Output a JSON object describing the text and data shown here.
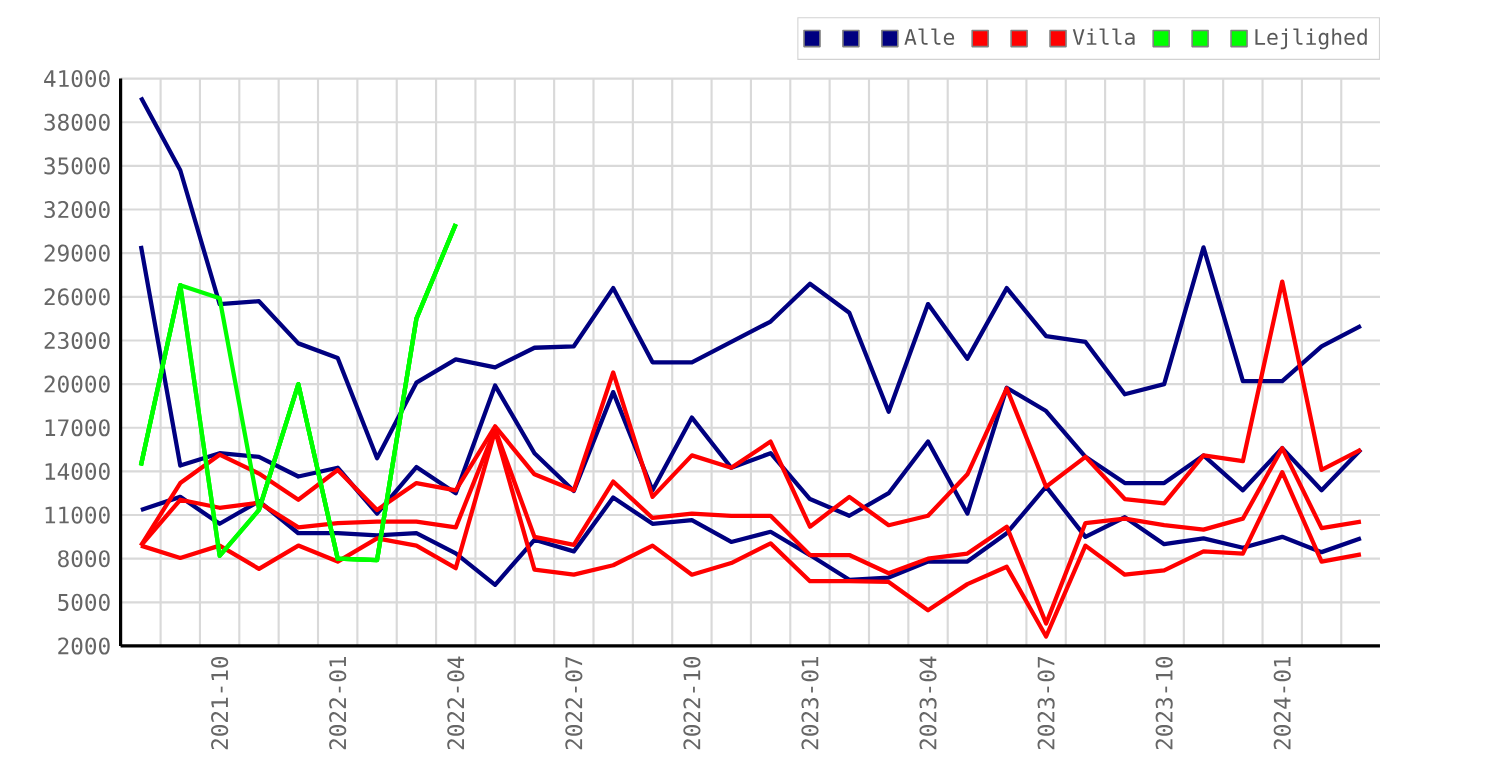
{
  "chart_data": {
    "type": "line",
    "x": [
      "2021-08",
      "2021-09",
      "2021-10",
      "2021-11",
      "2021-12",
      "2022-01",
      "2022-02",
      "2022-03",
      "2022-04",
      "2022-05",
      "2022-06",
      "2022-07",
      "2022-08",
      "2022-09",
      "2022-10",
      "2022-11",
      "2022-12",
      "2023-01",
      "2023-02",
      "2023-03",
      "2023-04",
      "2023-05",
      "2023-06",
      "2023-07",
      "2023-08",
      "2023-09",
      "2023-10",
      "2023-11",
      "2023-12",
      "2024-01",
      "2024-02",
      "2024-03"
    ],
    "series": [
      {
        "color": "#000080",
        "values": [
          39700,
          34700,
          25500,
          25700,
          22800,
          21800,
          14900,
          20100,
          21700,
          21150,
          22500,
          22600,
          26600,
          21500,
          21500,
          22900,
          24300,
          26900,
          24900,
          18100,
          25500,
          21750,
          26600,
          23300,
          22900,
          19300,
          20000,
          29400,
          20200,
          20200,
          22600,
          24000
        ]
      },
      {
        "color": "#000080",
        "values": [
          29500,
          14400,
          15250,
          15000,
          13650,
          14250,
          11100,
          14300,
          12500,
          19900,
          15250,
          12650,
          19450,
          12700,
          17700,
          14250,
          15250,
          12100,
          10950,
          12500,
          16050,
          11100,
          19750,
          18150,
          15000,
          13200,
          13200,
          15100,
          12700,
          15600,
          12700,
          15500
        ]
      },
      {
        "name": "Alle",
        "color": "#000080",
        "values": [
          11350,
          12250,
          10400,
          11950,
          9750,
          9750,
          9600,
          9750,
          8370,
          6200,
          9300,
          8500,
          12200,
          10400,
          10650,
          9150,
          9850,
          8250,
          6550,
          6700,
          7800,
          7800,
          9750,
          12950,
          9500,
          10850,
          9000,
          9400,
          8750,
          9500,
          8450,
          9400
        ]
      },
      {
        "color": "#ff0000",
        "values": [
          8900,
          13200,
          15150,
          13850,
          12050,
          14100,
          11350,
          13200,
          12700,
          17100,
          13800,
          12700,
          20800,
          12250,
          15100,
          14250,
          16050,
          10200,
          12250,
          10300,
          10950,
          13800,
          19700,
          12950,
          15000,
          12100,
          11800,
          15100,
          14700,
          27050,
          14100,
          15500
        ]
      },
      {
        "color": "#ff0000",
        "values": [
          8900,
          12050,
          11500,
          11850,
          10150,
          10450,
          10550,
          10550,
          10150,
          16900,
          9500,
          8950,
          13300,
          10800,
          11100,
          10950,
          10950,
          8250,
          8250,
          7000,
          8000,
          8350,
          10200,
          3550,
          10450,
          10750,
          10300,
          10000,
          10750,
          15600,
          10100,
          10550
        ]
      },
      {
        "name": "Villa",
        "color": "#ff0000",
        "values": [
          8900,
          8050,
          8900,
          7300,
          8900,
          7800,
          9400,
          8900,
          7350,
          16800,
          7250,
          6900,
          7550,
          8900,
          6900,
          7700,
          9050,
          6450,
          6450,
          6400,
          4450,
          6250,
          7450,
          2650,
          8900,
          6900,
          7200,
          8500,
          8350,
          13950,
          7800,
          8300
        ]
      },
      {
        "color": "#00ff00",
        "values": [
          14400,
          26800,
          25900,
          11350,
          20000,
          8000,
          7900,
          24500,
          31000,
          null,
          null,
          null,
          null,
          null,
          null,
          null,
          null,
          null,
          null,
          null,
          null,
          null,
          null,
          null,
          null,
          null,
          null,
          null,
          null,
          null,
          null,
          null
        ]
      },
      {
        "color": "#00ff00",
        "values": [
          14400,
          26800,
          8200,
          11350,
          20000,
          8000,
          7900,
          24500,
          31000,
          null,
          null,
          null,
          null,
          null,
          null,
          null,
          null,
          null,
          null,
          null,
          null,
          null,
          null,
          null,
          null,
          null,
          null,
          null,
          null,
          null,
          null,
          null
        ]
      },
      {
        "name": "Lejlighed",
        "color": "#00ff00",
        "values": [
          14400,
          26800,
          8200,
          11350,
          20000,
          8000,
          7900,
          24500,
          31000,
          null,
          null,
          null,
          null,
          null,
          null,
          null,
          null,
          null,
          null,
          null,
          null,
          null,
          null,
          null,
          null,
          null,
          null,
          null,
          null,
          null,
          null,
          null
        ]
      }
    ],
    "xlim": [
      "2021-07-16",
      "2024-03-16"
    ],
    "xticks": [
      "2021-10",
      "2022-01",
      "2022-04",
      "2022-07",
      "2022-10",
      "2023-01",
      "2023-04",
      "2023-07",
      "2023-10",
      "2024-01"
    ],
    "ylim": [
      2000,
      41000
    ],
    "yticks": [
      2000,
      5000,
      8000,
      11000,
      14000,
      17000,
      20000,
      23000,
      26000,
      29000,
      32000,
      35000,
      38000,
      41000
    ],
    "grid": true,
    "legend": "top right"
  }
}
